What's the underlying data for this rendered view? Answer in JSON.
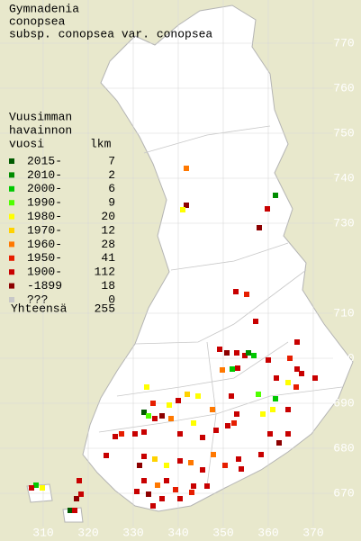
{
  "title": [
    "Gymnadenia",
    "conopsea",
    "subsp. conopsea var. conopsea"
  ],
  "legend": {
    "heading": [
      "Vuusimman",
      "havainnon",
      "vuosi"
    ],
    "count_heading": "lkm",
    "rows": [
      {
        "label": "2015-",
        "count": 7,
        "color": "#005a00"
      },
      {
        "label": "2010-",
        "count": 2,
        "color": "#008c00"
      },
      {
        "label": "2000-",
        "count": 6,
        "color": "#00c800"
      },
      {
        "label": "1990-",
        "count": 9,
        "color": "#50ff00"
      },
      {
        "label": "1980-",
        "count": 20,
        "color": "#ffff00"
      },
      {
        "label": "1970-",
        "count": 12,
        "color": "#ffd200"
      },
      {
        "label": "1960-",
        "count": 28,
        "color": "#ff7800"
      },
      {
        "label": "1950-",
        "count": 41,
        "color": "#e61e00"
      },
      {
        "label": "1900-",
        "count": 112,
        "color": "#c80000"
      },
      {
        "label": "-1899",
        "count": 18,
        "color": "#8c0000"
      },
      {
        "label": "???",
        "count": 0,
        "color": "#c8c8c8"
      }
    ],
    "total_label": "Yhteensä",
    "total": 255
  },
  "grid": {
    "x_ticks": [
      310,
      320,
      330,
      340,
      350,
      360,
      370
    ],
    "y_ticks": [
      670,
      680,
      690,
      700,
      710,
      730,
      740,
      750,
      760,
      770
    ]
  },
  "points": [
    [
      341.8,
      742.2,
      6
    ],
    [
      341.8,
      734,
      9
    ],
    [
      341,
      733,
      4
    ],
    [
      361.6,
      736.2,
      1
    ],
    [
      359.8,
      733.2,
      8
    ],
    [
      358,
      729,
      9
    ],
    [
      352.8,
      714.8,
      8
    ],
    [
      355.2,
      714.2,
      7
    ],
    [
      357.2,
      708.2,
      8
    ],
    [
      366.4,
      703.6,
      8
    ],
    [
      349.2,
      702,
      8
    ],
    [
      350.8,
      701.2,
      9
    ],
    [
      353,
      701.2,
      8
    ],
    [
      354.8,
      700.6,
      8
    ],
    [
      356.8,
      700.6,
      2
    ],
    [
      355.6,
      701.2,
      1
    ],
    [
      353.2,
      697.8,
      8
    ],
    [
      352,
      697.6,
      2
    ],
    [
      349.8,
      697.4,
      6
    ],
    [
      360,
      699.6,
      8
    ],
    [
      364.8,
      700,
      7
    ],
    [
      366.4,
      697.6,
      8
    ],
    [
      367.4,
      696.6,
      8
    ],
    [
      364.4,
      694.6,
      4
    ],
    [
      361.8,
      695.6,
      8
    ],
    [
      366.2,
      693.6,
      7
    ],
    [
      370.4,
      695.6,
      8
    ],
    [
      351.8,
      691.6,
      8
    ],
    [
      357.8,
      692,
      3
    ],
    [
      361.6,
      691,
      2
    ],
    [
      361,
      688.6,
      4
    ],
    [
      358.8,
      687.6,
      4
    ],
    [
      364.4,
      688.6,
      8
    ],
    [
      353,
      687.6,
      8
    ],
    [
      351,
      685,
      8
    ],
    [
      352.4,
      685.6,
      7
    ],
    [
      347.6,
      688.6,
      6
    ],
    [
      344.4,
      691.6,
      4
    ],
    [
      342,
      692,
      5
    ],
    [
      340,
      690.6,
      8
    ],
    [
      338,
      689.6,
      4
    ],
    [
      334.4,
      690,
      7
    ],
    [
      332.4,
      688,
      0
    ],
    [
      333.4,
      687.2,
      3
    ],
    [
      334.8,
      686.6,
      8
    ],
    [
      336.4,
      687.2,
      9
    ],
    [
      338.4,
      686.6,
      6
    ],
    [
      332.4,
      683.6,
      8
    ],
    [
      330.4,
      683.2,
      8
    ],
    [
      327.4,
      683.2,
      7
    ],
    [
      333,
      693.6,
      4
    ],
    [
      340.4,
      683.2,
      8
    ],
    [
      343.4,
      685.6,
      4
    ],
    [
      345.4,
      682.4,
      8
    ],
    [
      348.4,
      684,
      8
    ],
    [
      360.4,
      683.2,
      8
    ],
    [
      362.4,
      681.2,
      9
    ],
    [
      364.4,
      683.2,
      8
    ],
    [
      358.4,
      678.6,
      8
    ],
    [
      353.4,
      677.6,
      8
    ],
    [
      350.4,
      676.2,
      7
    ],
    [
      354,
      675.4,
      8
    ],
    [
      347.8,
      678.6,
      6
    ],
    [
      345.4,
      675.2,
      8
    ],
    [
      342.8,
      676.8,
      6
    ],
    [
      340.4,
      677.2,
      8
    ],
    [
      337.4,
      676.2,
      4
    ],
    [
      334.8,
      677.6,
      5
    ],
    [
      332.4,
      678.2,
      8
    ],
    [
      331.4,
      676.2,
      9
    ],
    [
      324,
      678.4,
      8
    ],
    [
      332.4,
      672.8,
      8
    ],
    [
      335.4,
      671.8,
      6
    ],
    [
      337.4,
      672.8,
      8
    ],
    [
      339.4,
      670.8,
      7
    ],
    [
      336.4,
      668.8,
      8
    ],
    [
      333.4,
      669.8,
      9
    ],
    [
      330.8,
      670.4,
      8
    ],
    [
      334.4,
      667.2,
      8
    ],
    [
      340.4,
      668.8,
      8
    ],
    [
      343,
      670.2,
      7
    ],
    [
      343.4,
      671.6,
      8
    ],
    [
      346.4,
      671.6,
      8
    ],
    [
      318,
      672.8,
      8
    ],
    [
      317.4,
      668.8,
      9
    ],
    [
      318.4,
      669.8,
      8
    ],
    [
      308.4,
      671.8,
      2
    ],
    [
      307.4,
      671.2,
      8
    ],
    [
      309.8,
      671.2,
      4
    ],
    [
      316,
      666.2,
      0
    ],
    [
      317,
      666.2,
      8
    ],
    [
      326,
      682.6,
      8
    ]
  ]
}
